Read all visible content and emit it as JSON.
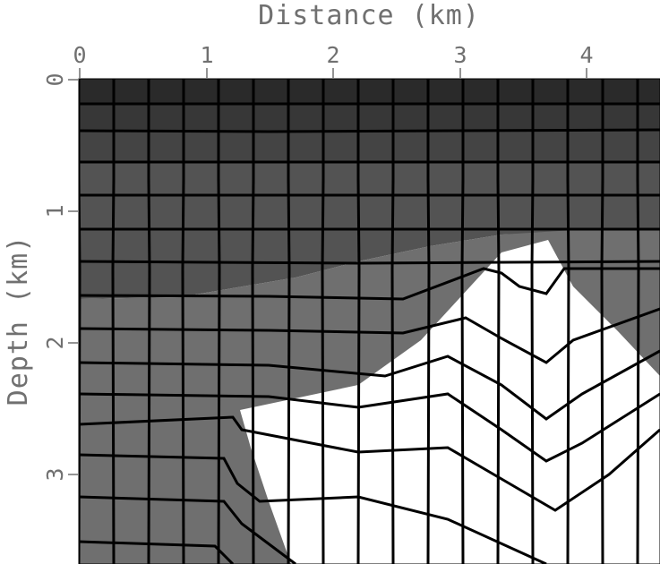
{
  "x_axis": {
    "label": "Distance (km)",
    "ticks": [
      "0",
      "1",
      "2",
      "3",
      "4"
    ],
    "range_km": [
      0,
      4.6
    ]
  },
  "y_axis": {
    "label": "Depth (km)",
    "ticks": [
      "0",
      "1",
      "2",
      "3"
    ],
    "range_km": [
      0,
      3.65
    ]
  },
  "colors": {
    "layer_0": "#2a2a2a",
    "layer_1": "#373737",
    "layer_2": "#444444",
    "layer_3": "#535353",
    "sediment": "#6f6f6f",
    "salt": "#ffffff",
    "grid": "#000000",
    "text": "#707070"
  }
}
